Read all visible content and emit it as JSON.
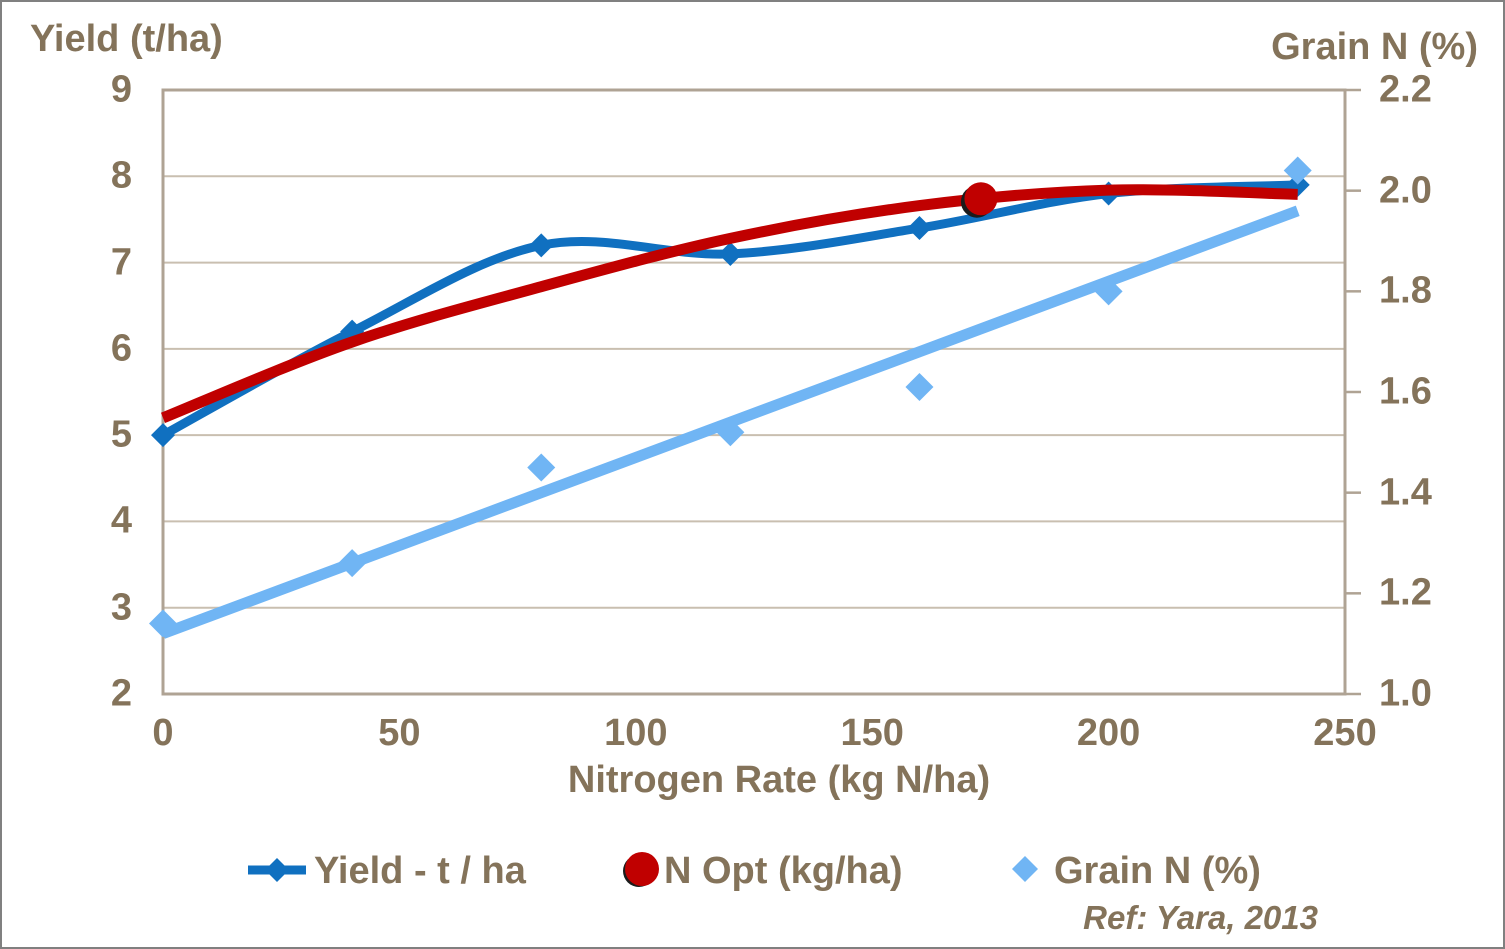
{
  "colors": {
    "text": "#84735A",
    "gridline": "#C9BFB0",
    "plot_border": "#AFA394",
    "outer_border": "#808080",
    "yield_blue": "#1070C0",
    "n_opt_red": "#C00000",
    "grain_light_blue": "#70B5F4",
    "marker_shadow": "#1B1B1B"
  },
  "chart_data": {
    "type": "line",
    "grid": "horizontal_only",
    "x_axis": {
      "label": "Nitrogen Rate (kg N/ha)",
      "min": 0,
      "max": 250,
      "ticks": [
        0,
        50,
        100,
        150,
        200,
        250
      ]
    },
    "y_axis_left": {
      "label": "Yield (t/ha)",
      "min": 2,
      "max": 9,
      "ticks": [
        9,
        8,
        7,
        6,
        5,
        4,
        3,
        2
      ]
    },
    "y_axis_right": {
      "label": "Grain N (%)",
      "min": 1.0,
      "max": 2.2,
      "ticks": [
        "2.2",
        "2.0",
        "1.8",
        "1.6",
        "1.4",
        "1.2",
        "1.0"
      ]
    },
    "series": [
      {
        "name": "Yield - t / ha",
        "axis": "left",
        "style": "line_with_diamond_markers",
        "color": "#1070C0",
        "points": {
          "x": [
            0,
            40,
            80,
            120,
            160,
            200,
            240
          ],
          "y": [
            5.0,
            6.2,
            7.2,
            7.1,
            7.4,
            7.8,
            7.9
          ]
        }
      },
      {
        "name": "N Opt (kg/ha)",
        "axis": "left",
        "style": "smooth_fitted_curve_with_single_circle_marker",
        "color": "#C00000",
        "curve_points": {
          "x": [
            0,
            40,
            80,
            120,
            160,
            200,
            240
          ],
          "y": [
            5.2,
            6.08,
            6.72,
            7.28,
            7.66,
            7.84,
            7.79
          ]
        },
        "optimum_marker": {
          "x": 173,
          "y": 7.74
        }
      },
      {
        "name": "Grain N (%)",
        "axis": "right",
        "style": "scatter_diamonds_with_linear_trendline",
        "color": "#70B5F4",
        "points": {
          "x": [
            0,
            40,
            80,
            120,
            160,
            200,
            240
          ],
          "y": [
            1.14,
            1.26,
            1.45,
            1.52,
            1.61,
            1.8,
            2.04
          ]
        },
        "trendline": {
          "x": [
            0,
            240
          ],
          "y": [
            1.12,
            1.96
          ]
        }
      }
    ],
    "legend": {
      "position": "bottom",
      "items": [
        "Yield - t / ha",
        "N Opt (kg/ha)",
        "Grain N (%)"
      ]
    },
    "annotation": "Ref: Yara, 2013"
  }
}
